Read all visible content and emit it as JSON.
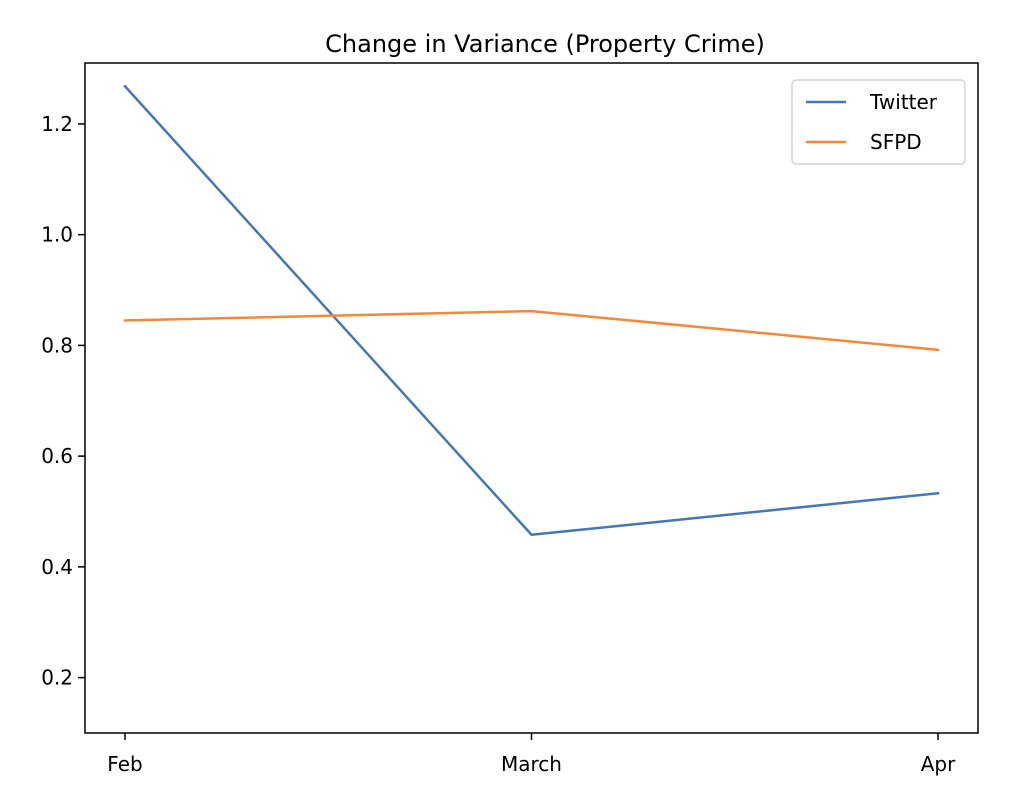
{
  "chart_data": {
    "type": "line",
    "title": "Change in Variance (Property Crime)",
    "xlabel": "",
    "ylabel": "",
    "categories": [
      "Feb",
      "March",
      "Apr"
    ],
    "series": [
      {
        "name": "Twitter",
        "color": "#4477b4",
        "values": [
          1.268,
          0.458,
          0.533
        ]
      },
      {
        "name": "SFPD",
        "color": "#f0893b",
        "values": [
          0.845,
          0.862,
          0.792
        ]
      }
    ],
    "ylim": [
      0.1,
      1.31
    ],
    "yticks": [
      0.2,
      0.4,
      0.6,
      0.8,
      1.0,
      1.2
    ],
    "ytick_labels": [
      "0.2",
      "0.4",
      "0.6",
      "0.8",
      "1.0",
      "1.2"
    ],
    "grid": false,
    "legend_position": "top-right"
  }
}
